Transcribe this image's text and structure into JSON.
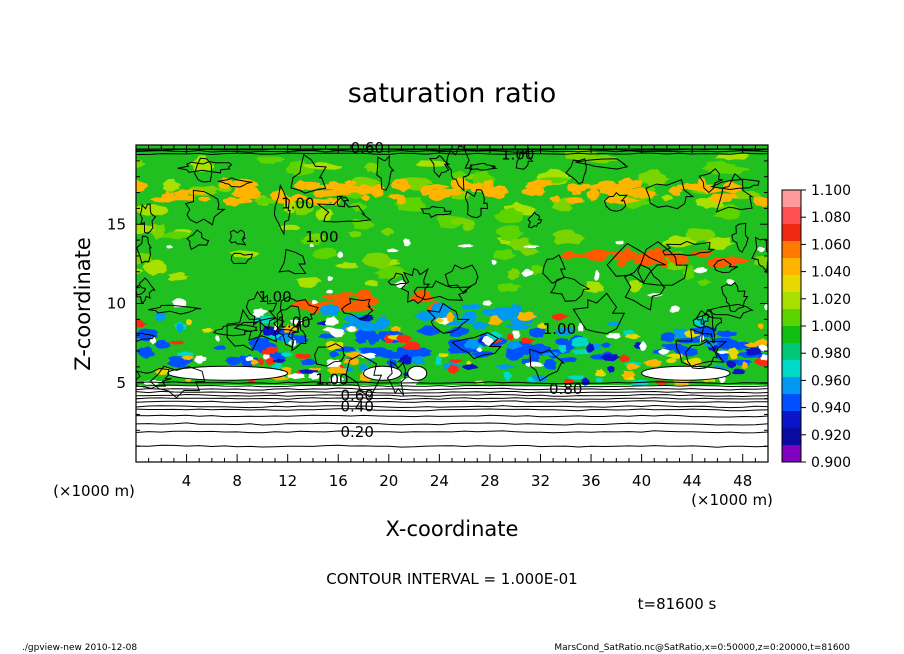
{
  "chart_data": {
    "type": "heatmap",
    "title": "saturation ratio",
    "xlabel": "X-coordinate",
    "ylabel": "Z-coordinate",
    "x_unit_left": "(×1000 m)",
    "x_unit_right": "(×1000 m)",
    "xlim": [
      0,
      50
    ],
    "ylim": [
      0,
      20
    ],
    "x_ticks": [
      "4",
      "8",
      "12",
      "16",
      "20",
      "24",
      "28",
      "32",
      "36",
      "40",
      "44",
      "48"
    ],
    "y_ticks": [
      "5",
      "10",
      "15"
    ],
    "contour_interval_text": "CONTOUR INTERVAL = 1.000E-01",
    "time_text": "t=81600 s",
    "footer_left": "./gpview-new  2010-12-08",
    "footer_right": "MarsCond_SatRatio.nc@SatRatio,x=0:50000,z=0:20000,t=81600",
    "contour_labels": [
      {
        "text": "0.20",
        "x": 17.5,
        "y": 1.9
      },
      {
        "text": "0.40",
        "x": 17.5,
        "y": 3.5
      },
      {
        "text": "0.60",
        "x": 17.5,
        "y": 4.2
      },
      {
        "text": "0.80",
        "x": 34.0,
        "y": 4.6
      },
      {
        "text": "1.00",
        "x": 15.5,
        "y": 5.2
      },
      {
        "text": "1.00",
        "x": 33.5,
        "y": 8.4
      },
      {
        "text": "1.00",
        "x": 12.5,
        "y": 8.8
      },
      {
        "text": "1.00",
        "x": 11.0,
        "y": 10.4
      },
      {
        "text": "1.00",
        "x": 14.7,
        "y": 14.2
      },
      {
        "text": "1.00",
        "x": 12.8,
        "y": 16.3
      },
      {
        "text": "1.00",
        "x": 30.2,
        "y": 19.4
      },
      {
        "text": "0.60",
        "x": 18.3,
        "y": 19.8
      }
    ],
    "colorbar": {
      "labels": [
        "1.100",
        "1.080",
        "1.060",
        "1.040",
        "1.020",
        "1.000",
        "0.980",
        "0.960",
        "0.940",
        "0.920",
        "0.900"
      ],
      "colors_top_to_bottom": [
        "#ff9a9a",
        "#ff5050",
        "#ee2b10",
        "#ff7a00",
        "#ffb400",
        "#e6d800",
        "#a8e000",
        "#5cd400",
        "#10c010",
        "#00c878",
        "#00d8c8",
        "#0098f0",
        "#0050ff",
        "#0a14c8",
        "#0a0aa0",
        "#8000c0"
      ]
    },
    "background_color": "#20c020",
    "features": [
      {
        "value": 1.03,
        "x": [
          0,
          50
        ],
        "y": [
          16.4,
          17.6
        ],
        "color": "#ffb400"
      },
      {
        "value": 1.05,
        "x": [
          13,
          24
        ],
        "y": [
          9.7,
          10.6
        ],
        "color": "#ff5a00"
      },
      {
        "value": 1.05,
        "x": [
          33,
          48
        ],
        "y": [
          12.5,
          13.2
        ],
        "color": "#ff5a00"
      },
      {
        "value": 0.94,
        "x": [
          0,
          50
        ],
        "y": [
          6.1,
          8.3
        ],
        "color": "#0050ff"
      },
      {
        "value": 0.96,
        "x": [
          15,
          32
        ],
        "y": [
          8.3,
          9.8
        ],
        "color": "#0098f0"
      }
    ]
  }
}
